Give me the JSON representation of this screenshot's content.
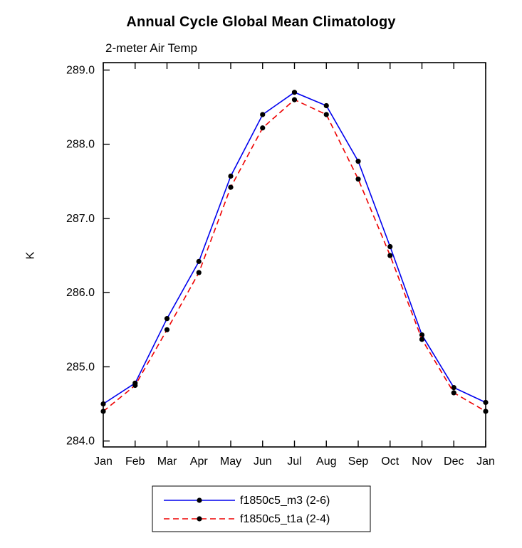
{
  "chart_data": {
    "type": "line",
    "title": "Annual Cycle Global Mean Climatology",
    "subtitle": "2-meter Air Temp",
    "ylabel": "K",
    "xlabel": "",
    "ylim": [
      284.0,
      289.0
    ],
    "yticks": [
      284.0,
      285.0,
      286.0,
      287.0,
      288.0,
      289.0
    ],
    "grid": false,
    "legend_position": "bottom",
    "marker_color": "#000000",
    "categories": [
      "Jan",
      "Feb",
      "Mar",
      "Apr",
      "May",
      "Jun",
      "Jul",
      "Aug",
      "Sep",
      "Oct",
      "Nov",
      "Dec",
      "Jan"
    ],
    "series": [
      {
        "name": "f1850c5_m3 (2-6)",
        "color": "#0000ee",
        "style": "solid",
        "marker": "dot",
        "values": [
          284.5,
          284.78,
          285.65,
          286.42,
          287.57,
          288.4,
          288.7,
          288.52,
          287.77,
          286.62,
          285.43,
          284.72,
          284.52
        ]
      },
      {
        "name": "f1850c5_t1a (2-4)",
        "color": "#ee0000",
        "style": "dashed",
        "marker": "dot",
        "values": [
          284.4,
          284.75,
          285.5,
          286.27,
          287.42,
          288.22,
          288.6,
          288.4,
          287.53,
          286.5,
          285.37,
          284.65,
          284.4
        ]
      }
    ]
  }
}
